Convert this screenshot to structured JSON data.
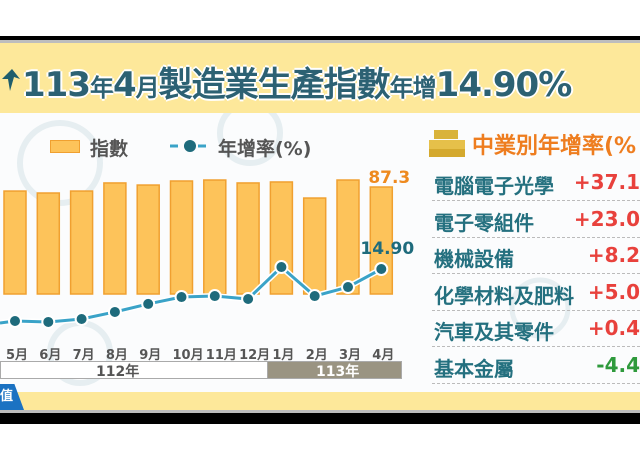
{
  "header": {
    "title_parts": [
      "113",
      "年",
      "4",
      "月",
      "製造業生產指數",
      "年增",
      "14.90%"
    ]
  },
  "chart_data": {
    "type": "bar+line",
    "categories": [
      "5月",
      "6月",
      "7月",
      "8月",
      "9月",
      "10月",
      "11月",
      "12月",
      "1月",
      "2月",
      "3月",
      "4月"
    ],
    "year_groups": [
      {
        "label": "112年",
        "months": 8
      },
      {
        "label": "113年",
        "months": 4
      }
    ],
    "series": [
      {
        "name": "指數",
        "type": "bar",
        "color": "#fdc35a",
        "values": [
          84.0,
          82.4,
          84.0,
          90.6,
          88.9,
          92.2,
          93.0,
          90.6,
          91.4,
          78.3,
          93.0,
          87.3
        ]
      },
      {
        "name": "年增率(%)",
        "type": "line",
        "color": "#3aa3c8",
        "marker_color": "#1e6b7c",
        "values": [
          -16.8,
          -17.4,
          -15.6,
          -11.3,
          -6.4,
          -2.2,
          -1.6,
          -3.4,
          16.1,
          -1.6,
          3.9,
          14.9
        ]
      }
    ],
    "data_labels": {
      "bar_last": "87.3",
      "line_last": "14.90"
    },
    "legend": {
      "bar": "指數",
      "line": "年增率(%)",
      "position": "top"
    }
  },
  "right_panel": {
    "title": "中業別年增率(%",
    "rows": [
      {
        "label": "電腦電子光學",
        "value": "+37.1",
        "color": "#e8413c"
      },
      {
        "label": "電子零組件",
        "value": "+23.0",
        "color": "#e8413c"
      },
      {
        "label": "機械設備",
        "value": "+8.2",
        "color": "#e8413c"
      },
      {
        "label": "化學材料及肥料",
        "value": "+5.0",
        "color": "#e8413c"
      },
      {
        "label": "汽車及其零件",
        "value": "+0.4",
        "color": "#e8413c"
      },
      {
        "label": "基本金屬",
        "value": "-4.4",
        "color": "#2e9a3c"
      }
    ]
  },
  "footer": {
    "tab": "值"
  }
}
